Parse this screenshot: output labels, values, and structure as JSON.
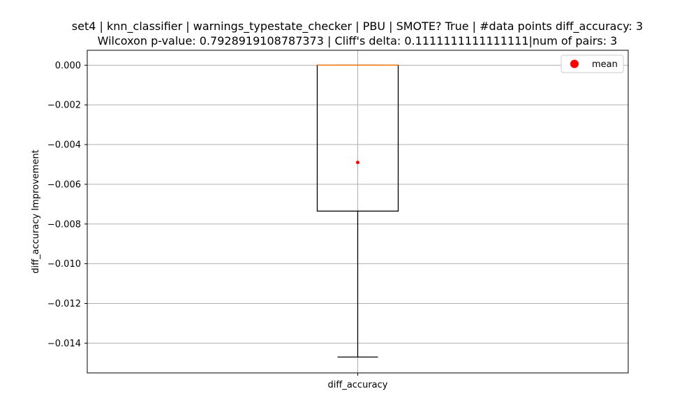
{
  "chart_data": {
    "type": "box",
    "title": "set4 | knn_classifier | warnings_typestate_checker | PBU | SMOTE? True | #data points diff_accuracy: 3",
    "subtitle": "Wilcoxon p-value: 0.7928919108787373 | Cliff's delta: 0.1111111111111111|num of pairs: 3",
    "xlabel": "",
    "ylabel": "diff_accuracy Improvement",
    "categories": [
      "diff_accuracy"
    ],
    "ylim": [
      -0.0155,
      0.00075
    ],
    "yticks": [
      0.0,
      -0.002,
      -0.004,
      -0.006,
      -0.008,
      -0.01,
      -0.012,
      -0.014
    ],
    "ytick_labels": [
      "0.000",
      "−0.002",
      "−0.004",
      "−0.006",
      "−0.008",
      "−0.010",
      "−0.012",
      "−0.014"
    ],
    "boxes": [
      {
        "category": "diff_accuracy",
        "whisker_low": -0.0147,
        "q1": -0.00735,
        "median": 0.0,
        "q3": 0.0,
        "whisker_high": 0.0,
        "mean": -0.0049
      }
    ],
    "legend": {
      "entries": [
        "mean"
      ],
      "position": "top-right"
    },
    "grid": true,
    "colors": {
      "box": "#000000",
      "median": "#ff7f0e",
      "mean": "#ff0000",
      "grid": "#b0b0b0",
      "axes": "#000000"
    }
  }
}
